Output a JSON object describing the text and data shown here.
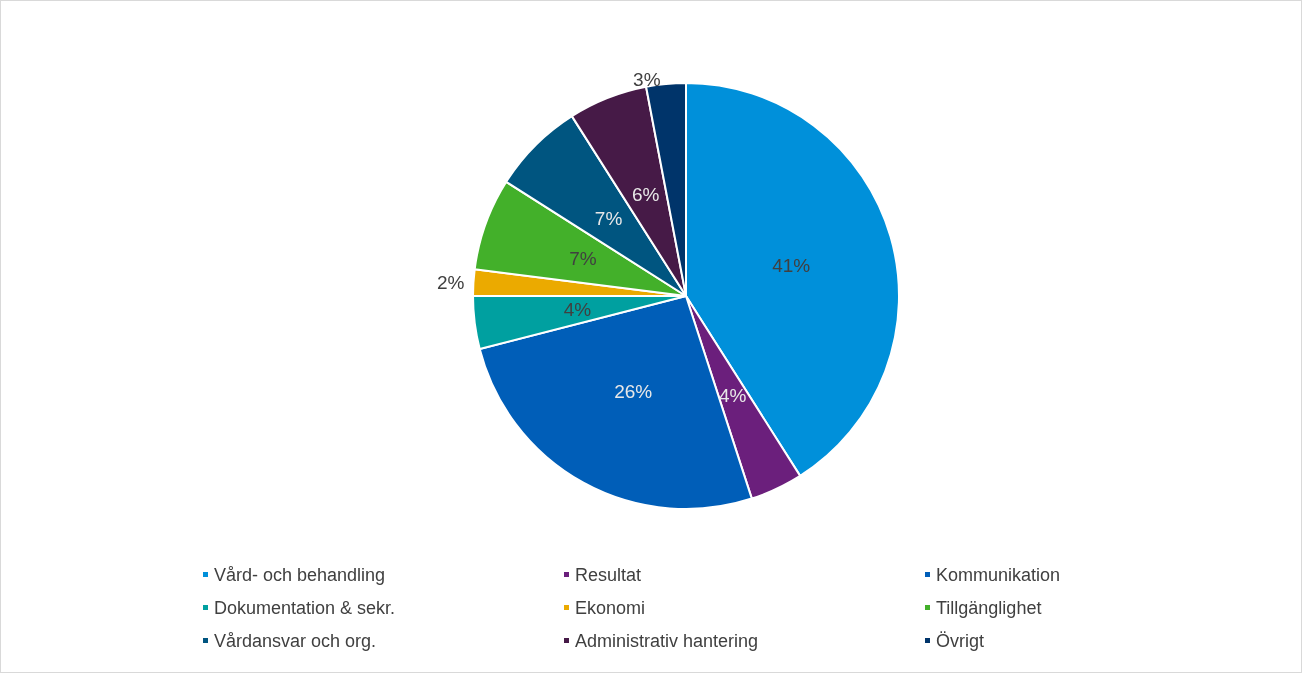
{
  "chart_data": {
    "type": "pie",
    "categories": [
      "Vård- och behandling",
      "Resultat",
      "Kommunikation",
      "Dokumentation & sekr.",
      "Ekonomi",
      "Tillgänglighet",
      "Vårdansvar och org.",
      "Administrativ hantering",
      "Övrigt"
    ],
    "values": [
      41,
      4,
      26,
      4,
      2,
      7,
      7,
      6,
      3
    ],
    "colors": [
      "#0090da",
      "#6b1f7c",
      "#005eb8",
      "#00a0a0",
      "#ebaa00",
      "#43b02a",
      "#005580",
      "#461a47",
      "#00346a"
    ],
    "value_labels": [
      "41%",
      "4%",
      "26%",
      "4%",
      "2%",
      "7%",
      "7%",
      "6%",
      "3%"
    ],
    "legend": "bottom"
  }
}
